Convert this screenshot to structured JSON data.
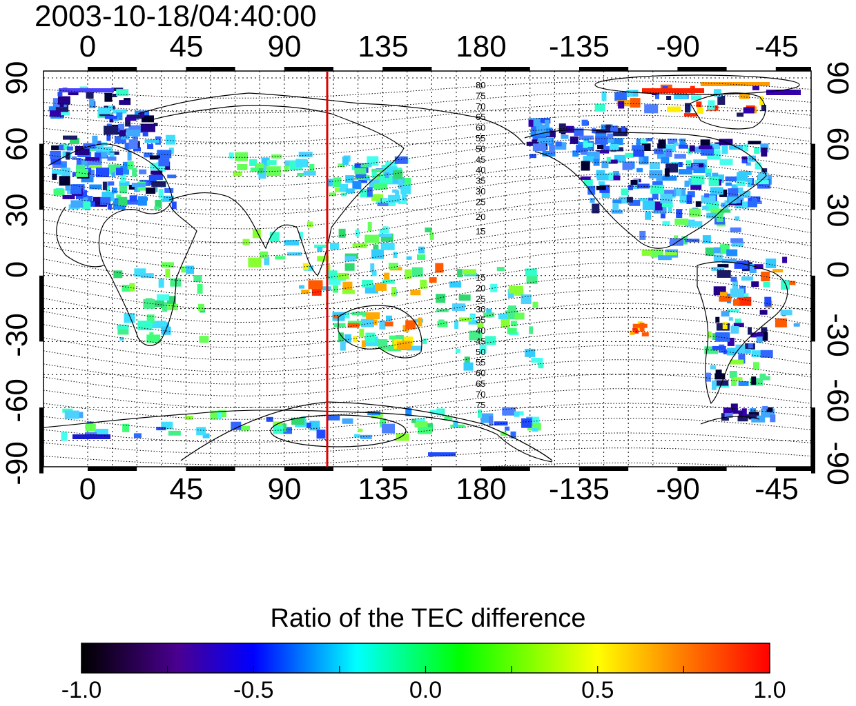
{
  "title": "2003-10-18/04:40:00",
  "x_ticks_top": [
    "0",
    "45",
    "90",
    "135",
    "180",
    "-135",
    "-90",
    "-45"
  ],
  "x_ticks_bottom": [
    "0",
    "45",
    "90",
    "135",
    "180",
    "-135",
    "-90",
    "-45"
  ],
  "y_ticks_left": [
    "90",
    "60",
    "30",
    "0",
    "-30",
    "-60",
    "-90"
  ],
  "y_ticks_right": [
    "90",
    "60",
    "30",
    "0",
    "-30",
    "-60",
    "-90"
  ],
  "contour_labels_north": [
    "80",
    "75",
    "70",
    "65",
    "60",
    "55",
    "50",
    "45",
    "40",
    "35",
    "30",
    "25",
    "20",
    "15"
  ],
  "contour_labels_south": [
    "15",
    "20",
    "25",
    "30",
    "35",
    "40",
    "45",
    "50",
    "55",
    "60",
    "65",
    "70",
    "75"
  ],
  "marker_line": {
    "longitude": 110,
    "color": "#dd0000"
  },
  "colorbar": {
    "title": "Ratio of the TEC difference",
    "ticks": [
      "-1.0",
      "-0.5",
      "0.0",
      "0.5",
      "1.0"
    ],
    "gradient": [
      "#000000",
      "#4a0090",
      "#0000ff",
      "#00ffff",
      "#00ff00",
      "#ffff00",
      "#ff8000",
      "#ff0000"
    ]
  },
  "colors": {
    "map_border": "#000000",
    "grid": "#000000",
    "coast": "#000000"
  }
}
